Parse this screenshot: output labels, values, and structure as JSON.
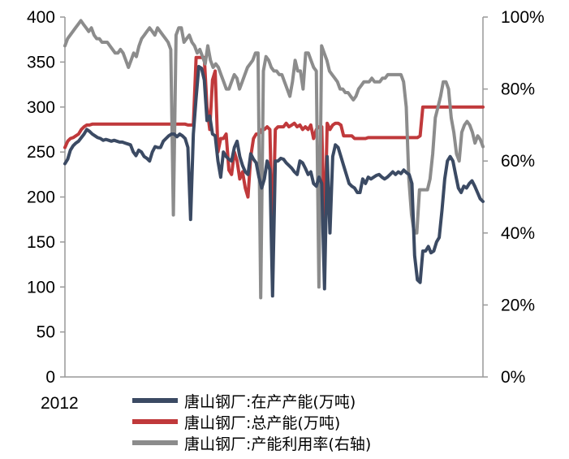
{
  "chart_data": {
    "type": "line",
    "x_start_label": "2012",
    "left_axis": {
      "ylim": [
        0,
        400
      ],
      "ticks": [
        "0",
        "50",
        "100",
        "150",
        "200",
        "250",
        "300",
        "350",
        "400"
      ]
    },
    "right_axis": {
      "ylim": [
        0,
        100
      ],
      "ticks": [
        "0%",
        "20%",
        "40%",
        "60%",
        "80%",
        "100%"
      ]
    },
    "grid": false,
    "legend_position": "bottom",
    "series": [
      {
        "name": "唐山钢厂:在产产能(万吨)",
        "axis": "left",
        "color": "#3b4a63",
        "values": [
          237,
          242,
          252,
          257,
          260,
          262,
          266,
          270,
          275,
          273,
          270,
          268,
          266,
          265,
          263,
          264,
          263,
          262,
          263,
          262,
          261,
          261,
          260,
          259,
          258,
          250,
          246,
          252,
          250,
          245,
          243,
          240,
          250,
          256,
          255,
          255,
          262,
          265,
          268,
          270,
          270,
          267,
          270,
          268,
          265,
          255,
          175,
          270,
          310,
          345,
          343,
          330,
          285,
          290,
          270,
          268,
          240,
          222,
          250,
          245,
          242,
          240,
          255,
          262,
          245,
          235,
          228,
          225,
          248,
          242,
          238,
          222,
          210,
          220,
          240,
          230,
          90,
          240,
          240,
          243,
          242,
          238,
          235,
          232,
          228,
          225,
          240,
          238,
          232,
          225,
          228,
          215,
          212,
          222,
          215,
          98,
          245,
          160,
          245,
          258,
          255,
          245,
          235,
          225,
          215,
          212,
          210,
          205,
          205,
          220,
          215,
          222,
          220,
          222,
          224,
          225,
          222,
          220,
          222,
          225,
          228,
          225,
          228,
          226,
          230,
          227,
          225,
          215,
          135,
          108,
          105,
          140,
          140,
          145,
          138,
          140,
          150,
          155,
          185,
          220,
          240,
          245,
          240,
          225,
          210,
          205,
          212,
          210,
          215,
          218,
          212,
          205,
          198,
          195
        ]
      },
      {
        "name": "唐山钢厂:总产能(万吨)",
        "axis": "left",
        "color": "#c0393b",
        "values": [
          255,
          262,
          265,
          266,
          268,
          270,
          275,
          278,
          280,
          280,
          281,
          281,
          281,
          281,
          281,
          281,
          281,
          281,
          281,
          281,
          281,
          281,
          281,
          281,
          281,
          281,
          281,
          281,
          281,
          281,
          281,
          281,
          281,
          281,
          281,
          281,
          281,
          281,
          281,
          281,
          281,
          281,
          281,
          281,
          281,
          280,
          280,
          280,
          355,
          355,
          355,
          355,
          300,
          275,
          330,
          340,
          250,
          265,
          265,
          270,
          230,
          225,
          250,
          240,
          220,
          228,
          210,
          200,
          245,
          265,
          270,
          270,
          275,
          275,
          278,
          275,
          150,
          275,
          278,
          278,
          278,
          282,
          278,
          280,
          282,
          278,
          280,
          275,
          278,
          275,
          280,
          265,
          275,
          278,
          278,
          150,
          282,
          275,
          280,
          282,
          282,
          280,
          268,
          268,
          268,
          268,
          265,
          265,
          265,
          265,
          265,
          266,
          266,
          266,
          266,
          266,
          266,
          266,
          266,
          266,
          266,
          266,
          266,
          266,
          266,
          266,
          266,
          266,
          266,
          266,
          268,
          300,
          300,
          300,
          300,
          300,
          300,
          300,
          300,
          300,
          300,
          300,
          300,
          300,
          300,
          300,
          300,
          300,
          300,
          300,
          300,
          300,
          300,
          300
        ]
      },
      {
        "name": "唐山钢厂:产能利用率(右轴)",
        "axis": "right",
        "color": "#8c8c8c",
        "values": [
          92,
          94,
          95,
          96,
          97,
          98,
          99,
          98,
          97,
          96,
          97,
          95,
          94,
          94,
          93,
          93,
          93,
          92,
          91,
          90,
          90,
          91,
          90,
          88,
          86,
          88,
          90,
          89,
          92,
          94,
          95,
          96,
          97,
          96,
          95,
          97,
          96,
          95,
          94,
          93,
          91,
          45,
          95,
          97,
          97,
          93,
          94,
          95,
          93,
          92,
          90,
          91,
          89,
          87,
          92,
          88,
          86,
          87,
          86,
          84,
          82,
          80,
          80,
          82,
          84,
          83,
          80,
          82,
          84,
          86,
          87,
          88,
          90,
          90,
          22,
          85,
          89,
          88,
          86,
          85,
          85,
          84,
          84,
          82,
          80,
          78,
          82,
          88,
          85,
          85,
          80,
          90,
          90,
          88,
          86,
          85,
          25,
          92,
          90,
          88,
          85,
          84,
          83,
          82,
          80,
          80,
          79,
          79,
          78,
          77,
          78,
          80,
          81,
          82,
          82,
          82,
          83,
          82,
          82,
          82,
          83,
          83,
          84,
          84,
          84,
          84,
          84,
          84,
          82,
          75,
          55,
          45,
          40,
          40,
          52,
          52,
          52,
          52,
          55,
          62,
          72,
          75,
          78,
          82,
          82,
          80,
          72,
          68,
          62,
          60,
          68,
          70,
          71,
          70,
          68,
          65,
          67,
          66,
          64
        ]
      }
    ]
  }
}
